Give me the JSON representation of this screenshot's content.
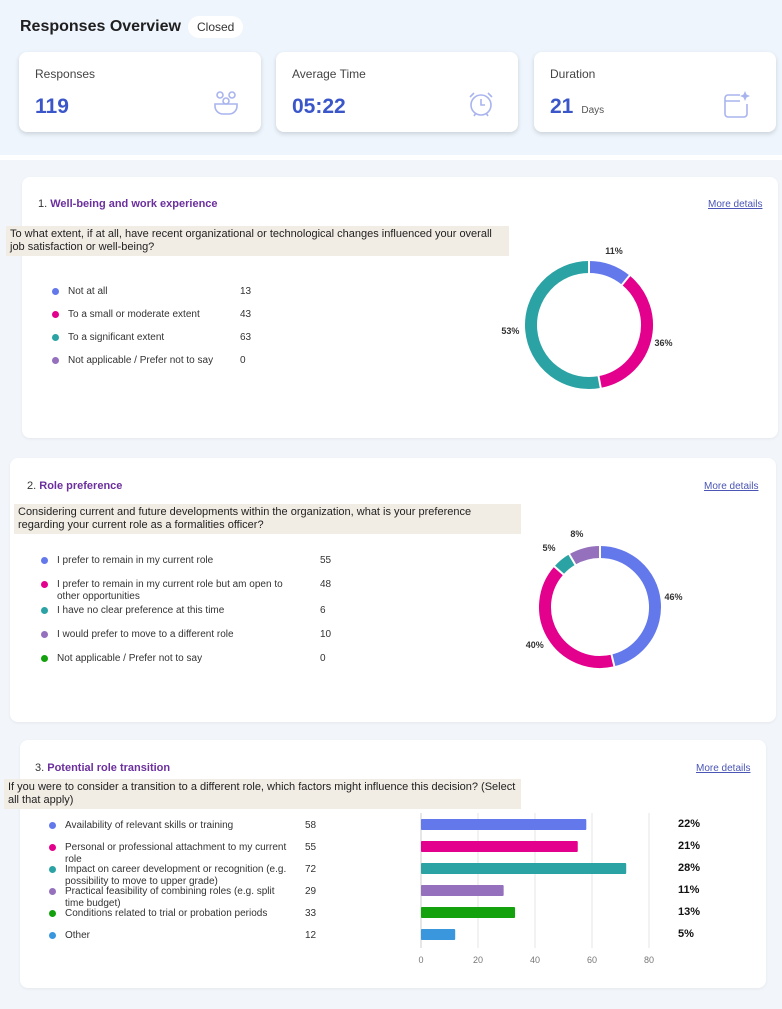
{
  "header": {
    "title": "Responses Overview",
    "status": "Closed"
  },
  "stats": [
    {
      "label": "Responses",
      "value": "119",
      "unit": "",
      "icon": "people-icon"
    },
    {
      "label": "Average Time",
      "value": "05:22",
      "unit": "",
      "icon": "alarm-clock-icon"
    },
    {
      "label": "Duration",
      "value": "21",
      "unit": "Days",
      "icon": "calendar-sparkle-icon"
    }
  ],
  "more_details": "More details",
  "questions": [
    {
      "number": "1.",
      "title": "Well-being and work experience",
      "text": "To what extent, if at all, have recent organizational or technological changes influenced your overall job satisfaction or well-being?",
      "options": [
        {
          "label": "Not at all",
          "count": 13,
          "color": "#6378ea",
          "pct": "11%"
        },
        {
          "label": "To a small or moderate extent",
          "count": 43,
          "color": "#e3008c",
          "pct": "36%"
        },
        {
          "label": "To a significant extent",
          "count": 63,
          "color": "#2ba3a4",
          "pct": "53%"
        },
        {
          "label": "Not applicable / Prefer not to say",
          "count": 0,
          "color": "#9470bd",
          "pct": ""
        }
      ]
    },
    {
      "number": "2.",
      "title": "Role preference",
      "text": "Considering current and future developments within the organization, what is your preference regarding your current role as a formalities officer?",
      "options": [
        {
          "label": "I prefer to remain in my current role",
          "count": 55,
          "color": "#6378ea",
          "pct": "46%"
        },
        {
          "label": "I prefer to remain in my current role but am open to other opportunities",
          "count": 48,
          "color": "#e3008c",
          "pct": "40%"
        },
        {
          "label": "I have no clear preference at this time",
          "count": 6,
          "color": "#2ba3a4",
          "pct": "5%"
        },
        {
          "label": "I would prefer to move to a different role",
          "count": 10,
          "color": "#9470bd",
          "pct": "8%"
        },
        {
          "label": "Not applicable / Prefer not to say",
          "count": 0,
          "color": "#13a10e",
          "pct": ""
        }
      ]
    },
    {
      "number": "3.",
      "title": "Potential role transition",
      "text": "If you were to consider a transition to a different role, which factors might influence this decision? (Select all that apply)",
      "options": [
        {
          "label": "Availability of relevant skills or training",
          "count": 58,
          "color": "#6378ea",
          "pct": "22%"
        },
        {
          "label": "Personal or professional attachment to my current role",
          "count": 55,
          "color": "#e3008c",
          "pct": "21%"
        },
        {
          "label": "Impact on career development or recognition (e.g. possibility to move to upper grade)",
          "count": 72,
          "color": "#2ba3a4",
          "pct": "28%"
        },
        {
          "label": "Practical feasibility of combining roles (e.g. split time budget)",
          "count": 29,
          "color": "#9470bd",
          "pct": "11%"
        },
        {
          "label": "Conditions related to trial or probation periods",
          "count": 33,
          "color": "#13a10e",
          "pct": "13%"
        },
        {
          "label": "Other",
          "count": 12,
          "color": "#3a96dd",
          "pct": "5%"
        }
      ]
    }
  ],
  "chart_data": [
    {
      "type": "pie",
      "title": "Well-being and work experience",
      "categories": [
        "Not at all",
        "To a small or moderate extent",
        "To a significant extent",
        "Not applicable / Prefer not to say"
      ],
      "values": [
        13,
        43,
        63,
        0
      ],
      "labels": [
        "11%",
        "36%",
        "53%",
        ""
      ]
    },
    {
      "type": "pie",
      "title": "Role preference",
      "categories": [
        "I prefer to remain in my current role",
        "I prefer to remain in my current role but am open to other opportunities",
        "I have no clear preference at this time",
        "I would prefer to move to a different role",
        "Not applicable / Prefer not to say"
      ],
      "values": [
        55,
        48,
        6,
        10,
        0
      ],
      "labels": [
        "46%",
        "40%",
        "5%",
        "8%",
        ""
      ]
    },
    {
      "type": "bar",
      "orientation": "horizontal",
      "title": "Potential role transition",
      "categories": [
        "Availability of relevant skills or training",
        "Personal or professional attachment to my current role",
        "Impact on career development or recognition",
        "Practical feasibility of combining roles",
        "Conditions related to trial or probation periods",
        "Other"
      ],
      "values": [
        58,
        55,
        72,
        29,
        33,
        12
      ],
      "labels": [
        "22%",
        "21%",
        "28%",
        "11%",
        "13%",
        "5%"
      ],
      "xlim": [
        0,
        80
      ],
      "xticks": [
        "0",
        "20",
        "40",
        "60",
        "80"
      ],
      "grid": true
    }
  ]
}
